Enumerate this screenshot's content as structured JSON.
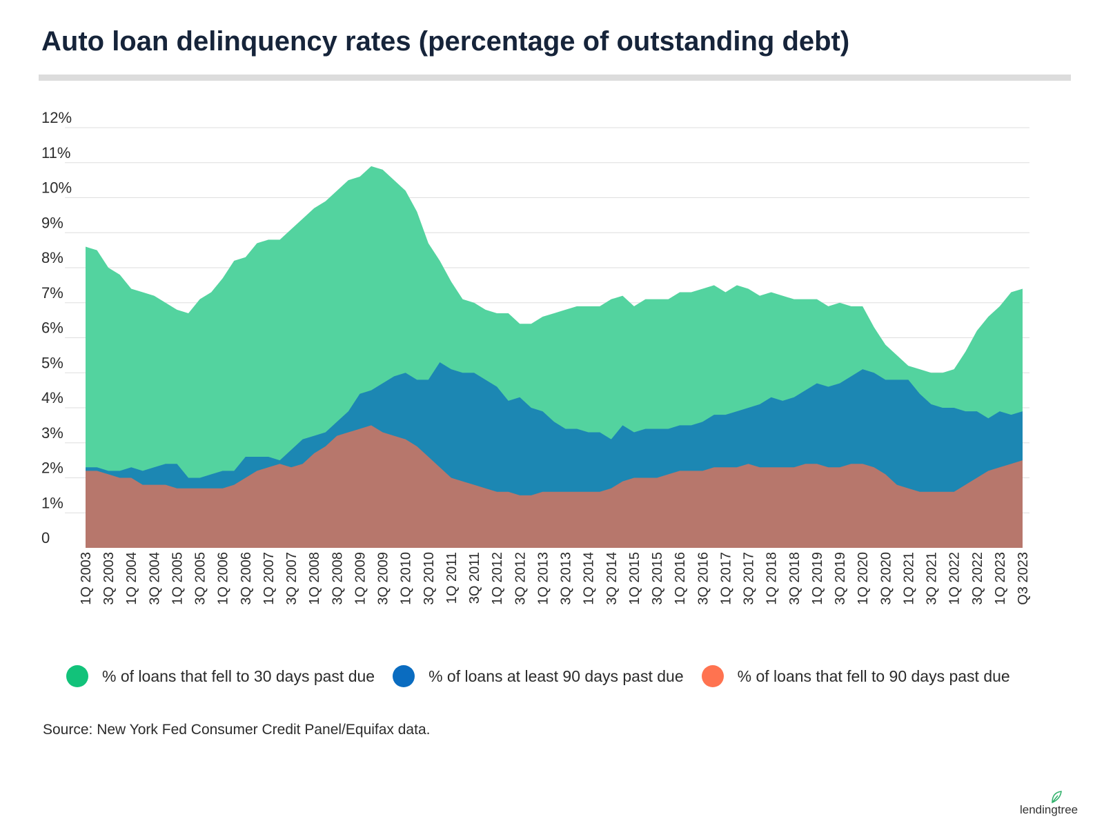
{
  "title": "Auto loan delinquency rates (percentage of outstanding debt)",
  "source": "Source: New York Fed Consumer Credit Panel/Equifax data.",
  "logo_text": "lendingtree",
  "colors": {
    "series_30": "#53d39f",
    "series_90plus": "#1c87b3",
    "series_90new": "#b7776c",
    "legend_30": "#12c27a",
    "legend_90plus": "#0a6cc0",
    "legend_90new": "#ff7350",
    "grid": "#dedede",
    "title_rule": "#dcdcdc",
    "logo_leaf": "#2fb06a"
  },
  "legend": [
    {
      "label": "% of loans that fell to 30 days past due",
      "color_key": "legend_30"
    },
    {
      "label": "% of loans at least 90 days past due",
      "color_key": "legend_90plus"
    },
    {
      "label": "% of loans that fell to 90 days past due",
      "color_key": "legend_90new"
    }
  ],
  "chart_data": {
    "type": "area",
    "title": "Auto loan delinquency rates (percentage of outstanding debt)",
    "ylim": [
      0,
      12
    ],
    "y_ticks": [
      "0",
      "1%",
      "2%",
      "3%",
      "4%",
      "5%",
      "6%",
      "7%",
      "8%",
      "9%",
      "10%",
      "11%",
      "12%"
    ],
    "grid": true,
    "legend_position": "bottom",
    "x": [
      "1Q 2003",
      "2Q 2003",
      "3Q 2003",
      "4Q 2003",
      "1Q 2004",
      "2Q 2004",
      "3Q 2004",
      "4Q 2004",
      "1Q 2005",
      "2Q 2005",
      "3Q 2005",
      "4Q 2005",
      "1Q 2006",
      "2Q 2006",
      "3Q 2006",
      "4Q 2006",
      "1Q 2007",
      "2Q 2007",
      "3Q 2007",
      "4Q 2007",
      "1Q 2008",
      "2Q 2008",
      "3Q 2008",
      "4Q 2008",
      "1Q 2009",
      "2Q 2009",
      "3Q 2009",
      "4Q 2009",
      "1Q 2010",
      "2Q 2010",
      "3Q 2010",
      "4Q 2010",
      "1Q 2011",
      "2Q 2011",
      "3Q 2011",
      "4Q 2011",
      "1Q 2012",
      "2Q 2012",
      "3Q 2012",
      "4Q 2012",
      "1Q 2013",
      "2Q 2013",
      "3Q 2013",
      "4Q 2013",
      "1Q 2014",
      "2Q 2014",
      "3Q 2014",
      "4Q 2014",
      "1Q 2015",
      "2Q 2015",
      "3Q 2015",
      "4Q 2015",
      "1Q 2016",
      "2Q 2016",
      "3Q 2016",
      "4Q 2016",
      "1Q 2017",
      "2Q 2017",
      "3Q 2017",
      "4Q 2017",
      "1Q 2018",
      "2Q 2018",
      "3Q 2018",
      "4Q 2018",
      "1Q 2019",
      "2Q 2019",
      "3Q 2019",
      "4Q 2019",
      "1Q 2020",
      "2Q 2020",
      "3Q 2020",
      "4Q 2020",
      "1Q 2021",
      "2Q 2021",
      "3Q 2021",
      "4Q 2021",
      "1Q 2022",
      "2Q 2022",
      "3Q 2022",
      "4Q 2022",
      "1Q 2023",
      "2Q 2023",
      "Q3 2023"
    ],
    "x_tick_labels": [
      "1Q 2003",
      "3Q 2003",
      "1Q 2004",
      "3Q 2004",
      "1Q 2005",
      "3Q 2005",
      "1Q 2006",
      "3Q 2006",
      "1Q 2007",
      "3Q 2007",
      "1Q 2008",
      "3Q 2008",
      "1Q 2009",
      "3Q 2009",
      "1Q 2010",
      "3Q 2010",
      "1Q 2011",
      "3Q 2011",
      "1Q 2012",
      "3Q 2012",
      "1Q 2013",
      "3Q 2013",
      "1Q 2014",
      "3Q 2014",
      "1Q 2015",
      "3Q 2015",
      "1Q 2016",
      "3Q 2016",
      "1Q 2017",
      "3Q 2017",
      "1Q 2018",
      "3Q 2018",
      "1Q 2019",
      "3Q 2019",
      "1Q 2020",
      "3Q 2020",
      "1Q 2021",
      "3Q 2021",
      "1Q 2022",
      "3Q 2022",
      "1Q 2023",
      "Q3 2023"
    ],
    "series": [
      {
        "name": "% of loans that fell to 30 days past due",
        "color_key": "series_30",
        "values": [
          8.6,
          8.5,
          8.0,
          7.8,
          7.4,
          7.3,
          7.2,
          7.0,
          6.8,
          6.7,
          7.1,
          7.3,
          7.7,
          8.2,
          8.3,
          8.7,
          8.8,
          8.8,
          9.1,
          9.4,
          9.7,
          9.9,
          10.2,
          10.5,
          10.6,
          10.9,
          10.8,
          10.5,
          10.2,
          9.6,
          8.7,
          8.2,
          7.6,
          7.1,
          7.0,
          6.8,
          6.7,
          6.7,
          6.4,
          6.4,
          6.6,
          6.7,
          6.8,
          6.9,
          6.9,
          6.9,
          7.1,
          7.2,
          6.9,
          7.1,
          7.1,
          7.1,
          7.3,
          7.3,
          7.4,
          7.5,
          7.3,
          7.5,
          7.4,
          7.2,
          7.3,
          7.2,
          7.1,
          7.1,
          7.1,
          6.9,
          7.0,
          6.9,
          6.9,
          6.3,
          5.8,
          5.5,
          5.2,
          5.1,
          5.0,
          5.0,
          5.1,
          5.6,
          6.2,
          6.6,
          6.9,
          7.3,
          7.4
        ]
      },
      {
        "name": "% of loans at least 90 days past due",
        "color_key": "series_90plus",
        "values": [
          2.3,
          2.3,
          2.2,
          2.2,
          2.3,
          2.2,
          2.3,
          2.4,
          2.4,
          2.0,
          2.0,
          2.1,
          2.2,
          2.2,
          2.6,
          2.6,
          2.6,
          2.5,
          2.8,
          3.1,
          3.2,
          3.3,
          3.6,
          3.9,
          4.4,
          4.5,
          4.7,
          4.9,
          5.0,
          4.8,
          4.8,
          5.3,
          5.1,
          5.0,
          5.0,
          4.8,
          4.6,
          4.2,
          4.3,
          4.0,
          3.9,
          3.6,
          3.4,
          3.4,
          3.3,
          3.3,
          3.1,
          3.5,
          3.3,
          3.4,
          3.4,
          3.4,
          3.5,
          3.5,
          3.6,
          3.8,
          3.8,
          3.9,
          4.0,
          4.1,
          4.3,
          4.2,
          4.3,
          4.5,
          4.7,
          4.6,
          4.7,
          4.9,
          5.1,
          5.0,
          4.8,
          4.8,
          4.8,
          4.4,
          4.1,
          4.0,
          4.0,
          3.9,
          3.9,
          3.7,
          3.9,
          3.8,
          3.9
        ]
      },
      {
        "name": "% of loans that fell to 90 days past due",
        "color_key": "series_90new",
        "values": [
          2.2,
          2.2,
          2.1,
          2.0,
          2.0,
          1.8,
          1.8,
          1.8,
          1.7,
          1.7,
          1.7,
          1.7,
          1.7,
          1.8,
          2.0,
          2.2,
          2.3,
          2.4,
          2.3,
          2.4,
          2.7,
          2.9,
          3.2,
          3.3,
          3.4,
          3.5,
          3.3,
          3.2,
          3.1,
          2.9,
          2.6,
          2.3,
          2.0,
          1.9,
          1.8,
          1.7,
          1.6,
          1.6,
          1.5,
          1.5,
          1.6,
          1.6,
          1.6,
          1.6,
          1.6,
          1.6,
          1.7,
          1.9,
          2.0,
          2.0,
          2.0,
          2.1,
          2.2,
          2.2,
          2.2,
          2.3,
          2.3,
          2.3,
          2.4,
          2.3,
          2.3,
          2.3,
          2.3,
          2.4,
          2.4,
          2.3,
          2.3,
          2.4,
          2.4,
          2.3,
          2.1,
          1.8,
          1.7,
          1.6,
          1.6,
          1.6,
          1.6,
          1.8,
          2.0,
          2.2,
          2.3,
          2.4,
          2.5
        ]
      }
    ]
  }
}
